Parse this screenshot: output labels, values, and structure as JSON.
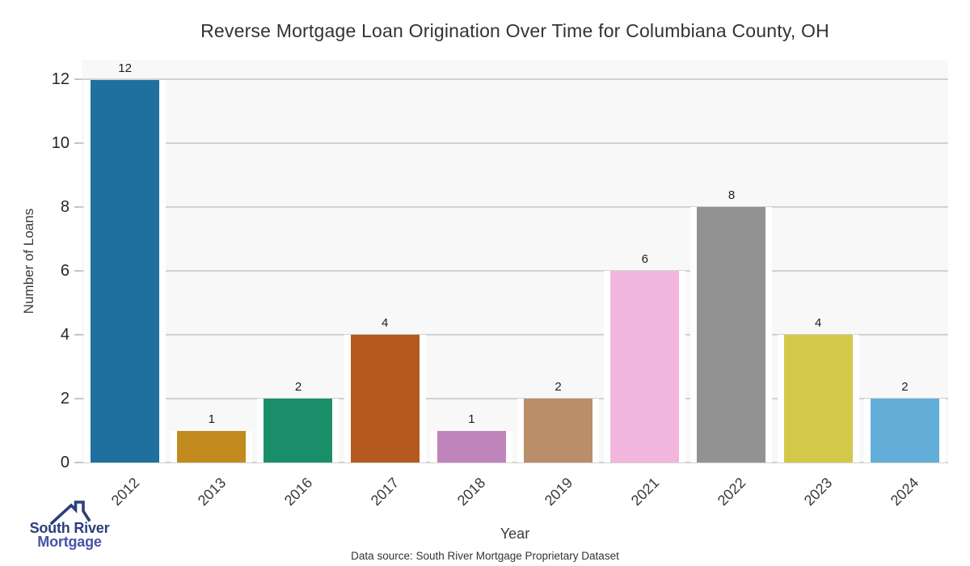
{
  "chart_data": {
    "type": "bar",
    "title": "Reverse Mortgage Loan Origination Over Time for Columbiana County, OH",
    "xlabel": "Year",
    "ylabel": "Number of Loans",
    "categories": [
      "2012",
      "2013",
      "2016",
      "2017",
      "2018",
      "2019",
      "2021",
      "2022",
      "2023",
      "2024"
    ],
    "values": [
      12,
      1,
      2,
      4,
      1,
      2,
      6,
      8,
      4,
      2
    ],
    "bar_colors": [
      "#1f6f9f",
      "#c28b20",
      "#1a8e68",
      "#b45a1f",
      "#bf84bb",
      "#ba8e69",
      "#f2b6de",
      "#929292",
      "#d2c94a",
      "#62aed8"
    ],
    "yticks": [
      0,
      2,
      4,
      6,
      8,
      10,
      12
    ],
    "ylim": [
      0,
      12.6
    ],
    "grid": "horizontal",
    "legend": "none",
    "value_labels": true
  },
  "footer": {
    "source": "Data source: South River Mortgage Proprietary Dataset"
  },
  "logo": {
    "line1": "South River",
    "line2": "Mortgage",
    "icon": "house-roof-icon",
    "color_primary": "#2c3e7e",
    "color_secondary": "#4853a8"
  },
  "colors": {
    "canvas_bg": "#ffffff",
    "plot_bg": "#f8f8f8",
    "gridline": "#d2d2d2",
    "tick_dash": "#c4c4c4",
    "title_text": "#333333",
    "tick_text": "#262626"
  }
}
